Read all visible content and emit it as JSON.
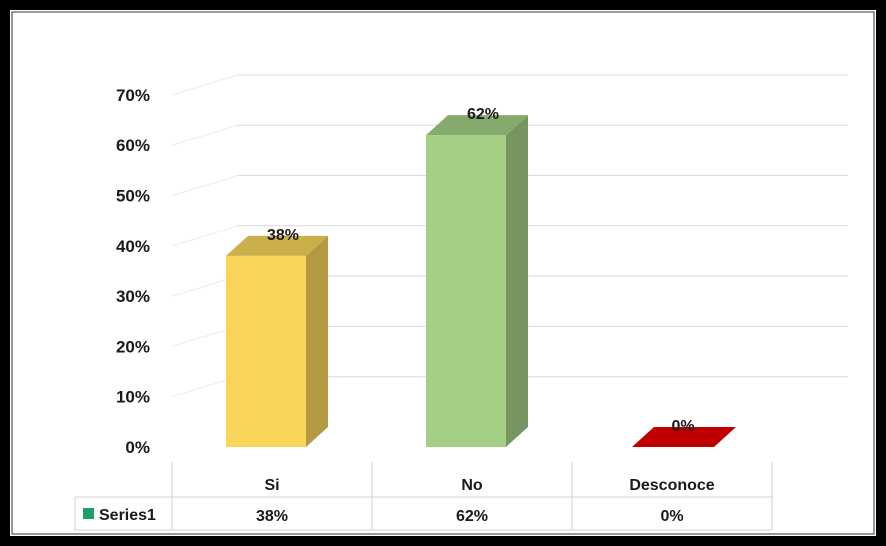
{
  "chart_data": {
    "type": "bar",
    "categories": [
      "Si",
      "No",
      "Desconoce"
    ],
    "series": [
      {
        "name": "Series1",
        "values": [
          38,
          62,
          0
        ],
        "labels": [
          "38%",
          "62%",
          "0%"
        ],
        "colors": [
          "#f9d55b",
          "#a4cf85",
          "#c00000"
        ]
      }
    ],
    "yticks": [
      "0%",
      "10%",
      "20%",
      "30%",
      "40%",
      "50%",
      "60%",
      "70%"
    ],
    "ylim": [
      0,
      70
    ],
    "grid": true,
    "legend": "data-table-left",
    "data_table": {
      "legend_label": "Series1",
      "legend_color": "#1aa06a",
      "values": [
        "38%",
        "62%",
        "0%"
      ]
    }
  }
}
